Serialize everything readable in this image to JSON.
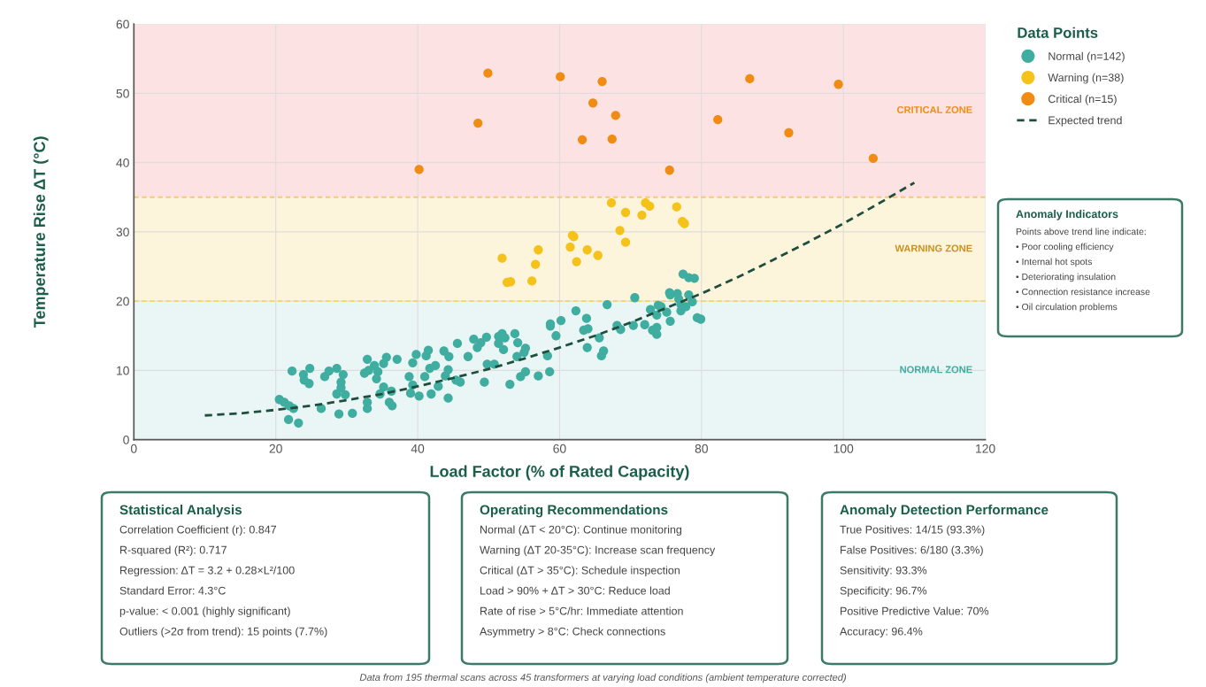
{
  "chart_data": {
    "type": "scatter",
    "xlabel": "Load Factor (% of Rated Capacity)",
    "ylabel": "Temperature Rise ΔT (°C)",
    "legend_title": "Data Points",
    "xlim": [
      0,
      120
    ],
    "xticks": [
      0,
      20,
      40,
      60,
      80,
      100,
      120
    ],
    "ylim": [
      0,
      60
    ],
    "yticks": [
      0,
      10,
      20,
      30,
      40,
      50,
      60
    ],
    "grid": true,
    "legend": "top right",
    "marker": "circle",
    "bands": [
      {
        "axis": "y",
        "from": 0,
        "to": 20,
        "label": "NORMAL ZONE",
        "color": "#eaf6f5"
      },
      {
        "axis": "y",
        "from": 20,
        "to": 35,
        "label": "WARNING ZONE",
        "color": "#fdf4dc"
      },
      {
        "axis": "y",
        "from": 35,
        "to": 60,
        "label": "CRITICAL ZONE",
        "color": "#fde2e3"
      }
    ],
    "ref_lines": [
      {
        "axis": "y",
        "value": 20,
        "color": "#f2d36e",
        "line_style": "dashed"
      },
      {
        "axis": "y",
        "value": 35,
        "color": "#f2c87a",
        "line_style": "dashed"
      }
    ],
    "series": [
      {
        "name": "Normal (n=142)",
        "color": "#3fada0",
        "x": [
          20.5,
          21.2,
          21.9,
          22.5,
          21.8,
          23.2,
          22.3,
          23.9,
          24.8,
          24.0,
          24.7,
          26.4,
          26.9,
          27.5,
          28.6,
          29.5,
          29.2,
          29.2,
          28.6,
          29.8,
          28.9,
          30.8,
          32.9,
          32.5,
          33.1,
          33.9,
          34.4,
          34.2,
          35.2,
          35.6,
          37.1,
          35.2,
          36.3,
          36.0,
          36.4,
          34.7,
          32.9,
          32.9,
          39.3,
          39.8,
          41.2,
          41.5,
          43.7,
          44.4,
          41.7,
          42.5,
          44.3,
          38.8,
          41.0,
          39.3,
          39.0,
          40.2,
          41.9,
          42.9,
          43.9,
          44.3,
          45.6,
          47.1,
          46.0,
          45.4,
          47.9,
          48.4,
          48.9,
          49.7,
          49.4,
          49.8,
          50.8,
          51.4,
          51.9,
          52.3,
          51.4,
          52.1,
          53.0,
          53.7,
          54.1,
          55.2,
          55.0,
          54.0,
          54.5,
          55.2,
          57.0,
          58.3,
          58.6,
          58.7,
          58.7,
          59.5,
          60.2,
          62.3,
          63.8,
          63.4,
          64.0,
          63.9,
          65.6,
          66.2,
          65.9,
          66.7,
          68.1,
          68.6,
          70.4,
          70.6,
          72.0,
          72.8,
          73.1,
          73.7,
          73.7,
          73.9,
          74.3,
          73.7,
          75.1,
          75.6,
          75.5,
          75.6,
          76.6,
          76.8,
          78.2,
          77.1,
          77.1,
          77.8,
          78.7,
          77.4,
          78.2,
          79.0,
          79.4,
          79.9
        ],
        "values": [
          5.8,
          5.4,
          4.9,
          4.5,
          2.9,
          2.4,
          9.9,
          9.4,
          10.3,
          8.6,
          8.1,
          4.5,
          9.1,
          9.9,
          10.3,
          9.4,
          8.3,
          7.5,
          6.6,
          6.5,
          3.7,
          3.8,
          11.6,
          9.6,
          10.0,
          10.7,
          9.8,
          8.8,
          11.0,
          11.9,
          11.6,
          7.6,
          7.0,
          5.4,
          4.9,
          6.6,
          5.4,
          4.5,
          11.1,
          12.3,
          12.1,
          12.9,
          12.8,
          12.0,
          10.3,
          10.7,
          10.1,
          9.1,
          9.1,
          7.9,
          6.7,
          6.3,
          6.6,
          7.7,
          9.2,
          6.0,
          13.9,
          12.0,
          8.3,
          8.6,
          14.5,
          13.3,
          14.0,
          14.8,
          8.3,
          10.9,
          10.9,
          14.9,
          15.3,
          14.7,
          13.9,
          13.0,
          8.0,
          15.3,
          14.0,
          13.2,
          12.6,
          12.0,
          9.1,
          9.8,
          9.2,
          12.1,
          9.8,
          16.7,
          16.4,
          15.0,
          17.2,
          18.6,
          17.5,
          15.8,
          16.0,
          13.3,
          14.7,
          12.8,
          12.1,
          19.5,
          16.5,
          15.9,
          16.5,
          20.5,
          16.6,
          18.8,
          15.8,
          16.2,
          15.2,
          19.4,
          19.2,
          18.0,
          18.4,
          17.1,
          21.2,
          20.9,
          21.1,
          20.3,
          20.9,
          19.5,
          18.6,
          19.2,
          19.9,
          23.9,
          23.4,
          23.3,
          17.6,
          17.4
        ]
      },
      {
        "name": "Warning (n=38)",
        "color": "#f5c21b",
        "x": [
          67.3,
          72.1,
          72.7,
          76.5,
          69.3,
          71.6,
          77.3,
          77.6,
          68.5,
          61.8,
          62.0,
          61.5,
          69.3,
          57.0,
          63.9,
          65.4,
          51.9,
          62.4,
          56.6,
          52.6,
          53.1,
          56.1
        ],
        "values": [
          34.2,
          34.2,
          33.7,
          33.6,
          32.8,
          32.4,
          31.5,
          31.2,
          30.2,
          29.5,
          29.3,
          27.8,
          28.5,
          27.4,
          27.4,
          26.6,
          26.2,
          25.7,
          25.3,
          22.7,
          22.8,
          22.9
        ]
      },
      {
        "name": "Critical (n=15)",
        "color": "#f08c14",
        "x": [
          49.9,
          60.1,
          66.0,
          64.7,
          67.9,
          48.5,
          63.2,
          67.4,
          40.2,
          75.5,
          86.8,
          99.3,
          82.3,
          92.3,
          104.2
        ],
        "values": [
          52.9,
          52.4,
          51.7,
          48.6,
          46.8,
          45.7,
          43.3,
          43.4,
          39.0,
          38.9,
          52.1,
          51.3,
          46.2,
          44.3,
          40.6
        ]
      },
      {
        "name": "Expected trend",
        "type": "line",
        "color": "#1f4e3d",
        "line_style": "dashed",
        "marker": "none",
        "x": [
          10,
          15,
          20,
          25,
          30,
          35,
          40,
          45,
          50,
          55,
          60,
          65,
          70,
          75,
          80,
          85,
          90,
          95,
          100,
          105,
          110
        ],
        "values": [
          3.5,
          3.8,
          4.3,
          4.9,
          5.7,
          6.6,
          7.7,
          8.9,
          10.2,
          11.7,
          13.3,
          15.0,
          16.9,
          19.0,
          21.1,
          23.4,
          25.9,
          28.5,
          31.2,
          34.1,
          37.1
        ]
      }
    ],
    "annotations": [
      "Anomaly Indicators\nPoints above trend line indicate:\n• Poor cooling efficiency\n• Internal hot spots\n• Deteriorating insulation\n• Connection resistance increase\n• Oil circulation problems",
      "Statistical Analysis\nCorrelation Coefficient (r): 0.847\nR-squared (R²): 0.717\nRegression: ΔT = 3.2 + 0.28×L²/100\nStandard Error: 4.3°C\np-value: < 0.001 (highly significant)\nOutliers (>2σ from trend): 15 points (7.7%)",
      "Operating Recommendations\nNormal (ΔT < 20°C): Continue monitoring\nWarning (ΔT 20-35°C): Increase scan frequency\nCritical (ΔT > 35°C): Schedule inspection\nLoad > 90% + ΔT > 30°C: Reduce load\nRate of rise > 5°C/hr: Immediate attention\nAsymmetry > 8°C: Check connections",
      "Anomaly Detection Performance\nTrue Positives: 14/15 (93.3%)\nFalse Positives: 6/180 (3.3%)\nSensitivity: 93.3%\nSpecificity: 96.7%\nPositive Predictive Value: 70%\nAccuracy: 96.4%",
      "Data from 195 thermal scans across 45 transformers at varying load conditions (ambient temperature corrected)"
    ]
  }
}
